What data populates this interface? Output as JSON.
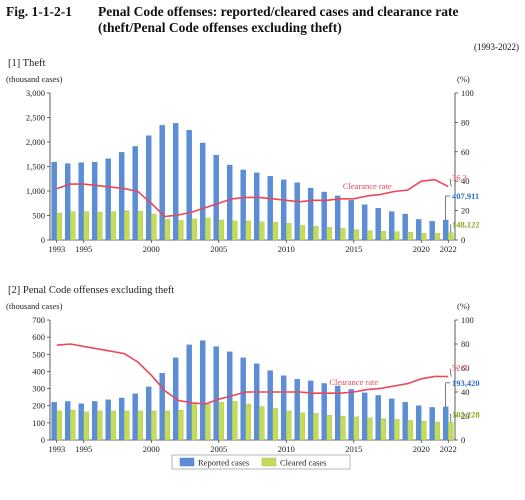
{
  "figure": {
    "number": "Fig. 1-1-2-1",
    "title": "Penal Code offenses: reported/cleared cases and clearance rate (theft/Penal Code offenses excluding theft)",
    "range": "(1993-2022)"
  },
  "colors": {
    "reported": "#5b8ed6",
    "cleared": "#c3dc5b",
    "rate": "#e8485a",
    "rateLabel": "#e8485a",
    "reportedLabel": "#2f6fc7",
    "clearedLabel": "#8aa51e"
  },
  "legend": {
    "reported": "Reported cases",
    "cleared": "Cleared cases"
  },
  "chart_data": [
    {
      "type": "bar",
      "title": "[1] Theft",
      "ylabel": "(thousand cases)",
      "y2label": "(%)",
      "ylim": [
        0,
        3000
      ],
      "yticks": [
        "0",
        "500",
        "1,000",
        "1,500",
        "2,000",
        "2,500",
        "3,000"
      ],
      "y2lim": [
        0,
        100
      ],
      "y2ticks": [
        "0",
        "20",
        "40",
        "60",
        "80",
        "100"
      ],
      "x": [
        1993,
        1994,
        1995,
        1996,
        1997,
        1998,
        1999,
        2000,
        2001,
        2002,
        2003,
        2004,
        2005,
        2006,
        2007,
        2008,
        2009,
        2010,
        2011,
        2012,
        2013,
        2014,
        2015,
        2016,
        2017,
        2018,
        2019,
        2020,
        2021,
        2022
      ],
      "xticks": [
        "1993",
        "1995",
        "2000",
        "2005",
        "2010",
        "2015",
        "2020",
        "2022"
      ],
      "series": [
        {
          "name": "Reported cases",
          "axis": "left",
          "kind": "bar",
          "values": [
            1590,
            1560,
            1580,
            1590,
            1660,
            1790,
            1910,
            2130,
            2340,
            2380,
            2240,
            1980,
            1730,
            1530,
            1430,
            1370,
            1300,
            1230,
            1170,
            1060,
            980,
            900,
            810,
            720,
            650,
            580,
            530,
            420,
            380,
            407.911
          ]
        },
        {
          "name": "Cleared cases",
          "axis": "left",
          "kind": "bar",
          "values": [
            550,
            580,
            580,
            570,
            580,
            600,
            590,
            530,
            420,
            400,
            430,
            450,
            410,
            390,
            390,
            370,
            360,
            340,
            300,
            280,
            260,
            240,
            210,
            190,
            180,
            170,
            160,
            140,
            140,
            148.122
          ]
        },
        {
          "name": "Clearance rate",
          "axis": "right",
          "kind": "line",
          "values": [
            35,
            38,
            38,
            37,
            36,
            35,
            33,
            25,
            16,
            17,
            19,
            22,
            25,
            28,
            29,
            29,
            28,
            27,
            26,
            27,
            27,
            28,
            28,
            30,
            31,
            33,
            34,
            40,
            41,
            36.3
          ]
        }
      ],
      "labels": {
        "rate": "Clearance rate",
        "rateEnd": "36.3",
        "reportedEnd": "407,911",
        "clearedEnd": "148,122"
      }
    },
    {
      "type": "bar",
      "title": "[2] Penal Code offenses excluding theft",
      "ylabel": "(thousand cases)",
      "y2label": "(%)",
      "ylim": [
        0,
        700
      ],
      "yticks": [
        "0",
        "100",
        "200",
        "300",
        "400",
        "500",
        "600",
        "700"
      ],
      "y2lim": [
        0,
        100
      ],
      "y2ticks": [
        "0",
        "20",
        "40",
        "60",
        "80",
        "100"
      ],
      "x": [
        1993,
        1994,
        1995,
        1996,
        1997,
        1998,
        1999,
        2000,
        2001,
        2002,
        2003,
        2004,
        2005,
        2006,
        2007,
        2008,
        2009,
        2010,
        2011,
        2012,
        2013,
        2014,
        2015,
        2016,
        2017,
        2018,
        2019,
        2020,
        2021,
        2022
      ],
      "xticks": [
        "1993",
        "1995",
        "2000",
        "2005",
        "2010",
        "2015",
        "2020",
        "2022"
      ],
      "series": [
        {
          "name": "Reported cases",
          "axis": "left",
          "kind": "bar",
          "values": [
            220,
            225,
            212,
            225,
            235,
            245,
            270,
            310,
            390,
            480,
            555,
            580,
            545,
            515,
            480,
            445,
            405,
            375,
            355,
            345,
            330,
            315,
            295,
            275,
            260,
            240,
            220,
            200,
            190,
            193.42
          ]
        },
        {
          "name": "Cleared cases",
          "axis": "left",
          "kind": "bar",
          "values": [
            170,
            175,
            165,
            170,
            170,
            170,
            170,
            170,
            170,
            175,
            210,
            210,
            220,
            225,
            210,
            195,
            185,
            170,
            160,
            155,
            145,
            140,
            135,
            130,
            125,
            120,
            115,
            110,
            105,
            102.228
          ]
        },
        {
          "name": "Clearance rate",
          "axis": "right",
          "kind": "line",
          "values": [
            79,
            80,
            78,
            76,
            74,
            72,
            65,
            54,
            41,
            33,
            31,
            30,
            34,
            37,
            40,
            40,
            40,
            40,
            40,
            39,
            39,
            39,
            40,
            42,
            43,
            45,
            47,
            51,
            53,
            52.9
          ]
        }
      ],
      "labels": {
        "rate": "Clearance rate",
        "rateEnd": "52.9",
        "reportedEnd": "193,420",
        "clearedEnd": "102,228"
      }
    }
  ]
}
